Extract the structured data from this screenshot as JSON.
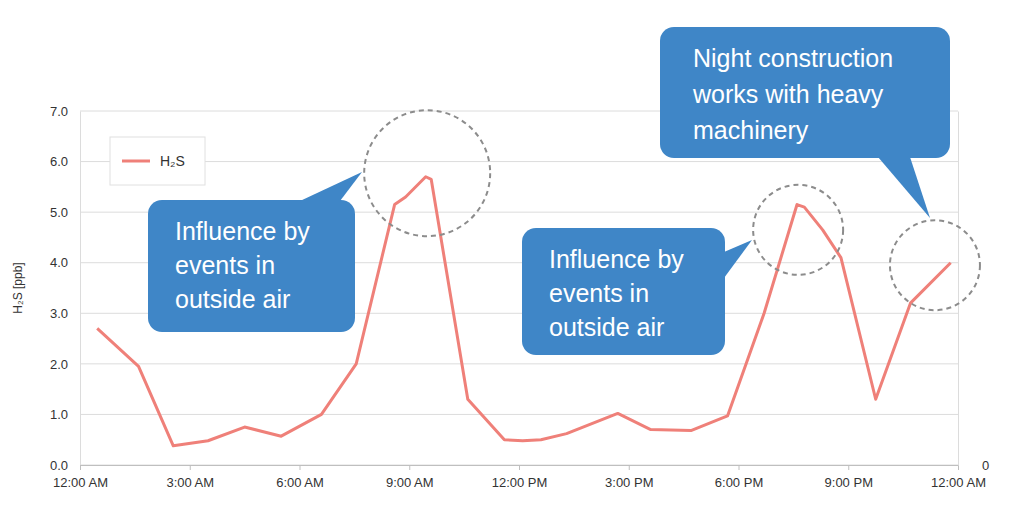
{
  "chart_data": {
    "type": "line",
    "y_label": "H₂S [ppb]",
    "x": [
      0.47,
      1.6,
      2.55,
      3.5,
      4.5,
      5.5,
      6.6,
      7.55,
      8.6,
      8.9,
      9.45,
      9.6,
      10.6,
      11.6,
      12.1,
      12.6,
      13.3,
      14.7,
      15.6,
      16.7,
      17.7,
      18.7,
      19.6,
      19.8,
      20.3,
      20.8,
      21.75,
      22.7,
      23.8
    ],
    "series": [
      {
        "name": "H₂S",
        "color": "#ef8079",
        "values": [
          2.7,
          1.95,
          0.38,
          0.48,
          0.75,
          0.57,
          1.0,
          2.0,
          5.15,
          5.3,
          5.7,
          5.65,
          1.3,
          0.5,
          0.48,
          0.5,
          0.62,
          1.02,
          0.7,
          0.68,
          0.97,
          3.0,
          5.15,
          5.1,
          4.65,
          4.1,
          1.3,
          3.2,
          4.0
        ]
      }
    ],
    "xlim": [
      0,
      24
    ],
    "xticks": [
      {
        "value": 0,
        "label": "12:00 AM"
      },
      {
        "value": 3,
        "label": "3:00 AM"
      },
      {
        "value": 6,
        "label": "6:00 AM"
      },
      {
        "value": 9,
        "label": "9:00 AM"
      },
      {
        "value": 12,
        "label": "12:00 PM"
      },
      {
        "value": 15,
        "label": "3:00 PM"
      },
      {
        "value": 18,
        "label": "6:00 PM"
      },
      {
        "value": 21,
        "label": "9:00 PM"
      },
      {
        "value": 24,
        "label": "12:00 AM"
      }
    ],
    "ylim": [
      0,
      7
    ],
    "yticks": [
      {
        "value": 0,
        "label": "0.0"
      },
      {
        "value": 1,
        "label": "1.0"
      },
      {
        "value": 2,
        "label": "2.0"
      },
      {
        "value": 3,
        "label": "3.0"
      },
      {
        "value": 4,
        "label": "4.0"
      },
      {
        "value": 5,
        "label": "5.0"
      },
      {
        "value": 6,
        "label": "6.0"
      },
      {
        "value": 7,
        "label": "7.0"
      }
    ],
    "y2lim": [
      0,
      7
    ],
    "y2ticks": [
      0
    ],
    "grid": true,
    "legend": "upper left",
    "annotations": [
      {
        "lines": [
          "Influence by",
          "events in",
          "outside air"
        ],
        "x": 9.49,
        "y": 5.77
      },
      {
        "lines": [
          "Influence by",
          "events in",
          "outside air"
        ],
        "x": 19.63,
        "y": 4.65
      },
      {
        "lines": [
          "Night construction",
          "works with heavy",
          "machinery"
        ],
        "x": 23.37,
        "y": 3.95
      }
    ]
  }
}
